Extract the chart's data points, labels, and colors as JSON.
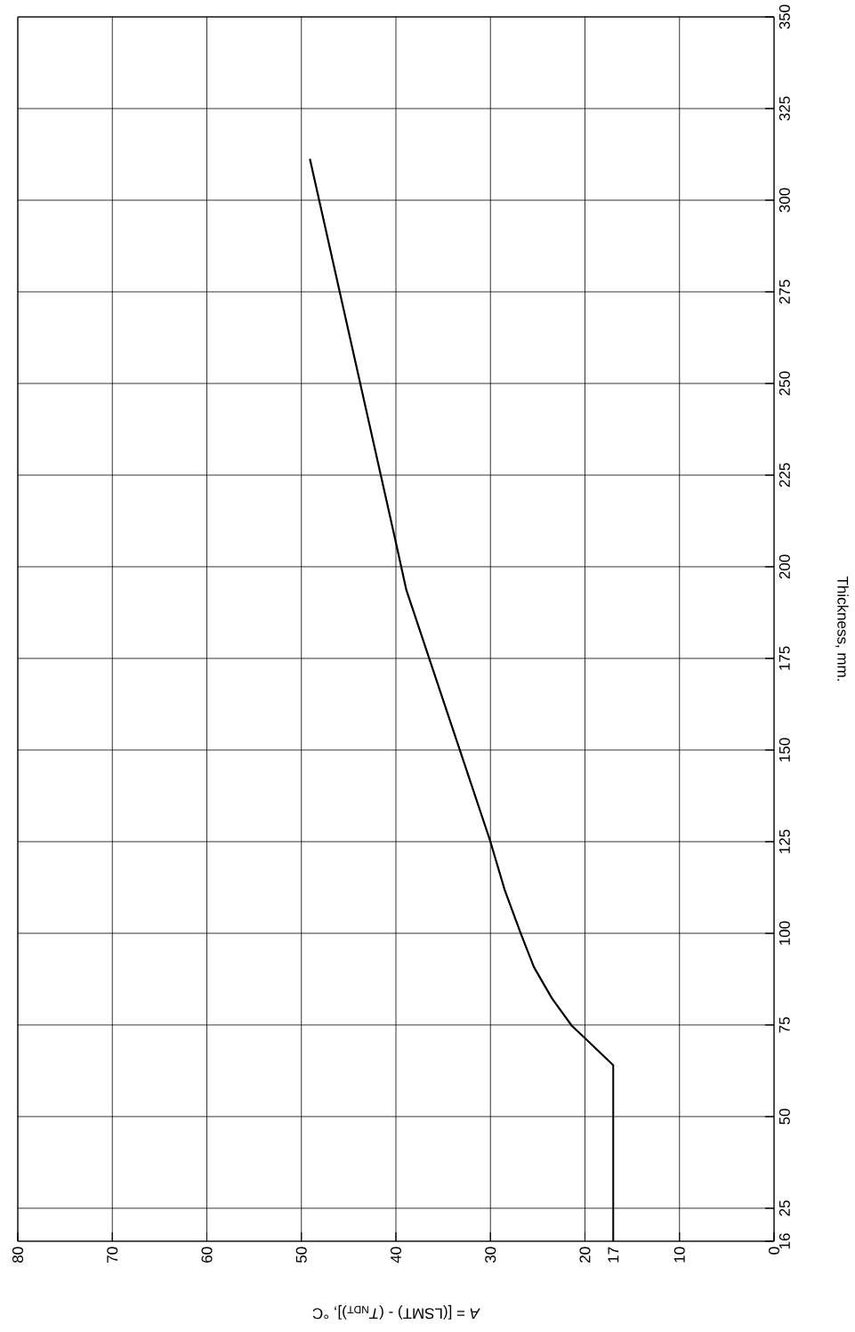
{
  "chart_data": {
    "type": "line",
    "xlabel": "*A* = [(LSMT) - (*T*$_{NDT}$)], °C",
    "ylabel": "Thickness, mm.",
    "xlim": [
      80,
      0
    ],
    "ylim": [
      16,
      350
    ],
    "xticks": [
      0,
      10,
      {
        "value": 17,
        "label": "17"
      },
      20,
      30,
      40,
      50,
      60,
      70,
      80
    ],
    "yticks": [
      16,
      25,
      50,
      75,
      100,
      125,
      150,
      175,
      200,
      225,
      250,
      275,
      300,
      325,
      350
    ],
    "grid": true,
    "line_style": "solid",
    "series": [
      {
        "color": "#000000",
        "x": [
          17,
          17,
          20,
          21.4,
          23.5,
          25.4,
          26.8,
          28.5,
          30,
          38.9,
          40,
          49.1
        ],
        "values": [
          16,
          64,
          71.4,
          74.8,
          82.3,
          90.8,
          100,
          111.9,
          125,
          193.7,
          206.6,
          311.3
        ]
      }
    ]
  }
}
